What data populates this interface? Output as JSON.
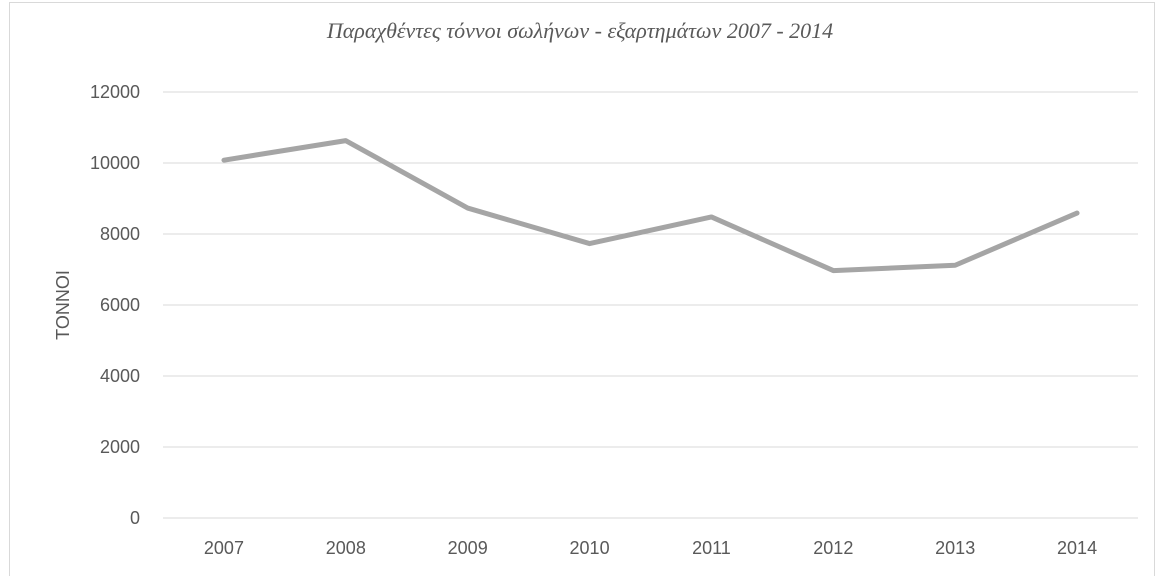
{
  "chart_data": {
    "type": "line",
    "title": "Παραχθέντες τόννοι σωλήνων - εξαρτημάτων 2007 - 2014",
    "xlabel": "",
    "ylabel": "ΤΟΝΝΟΙ",
    "categories": [
      "2007",
      "2008",
      "2009",
      "2010",
      "2011",
      "2012",
      "2013",
      "2014"
    ],
    "series": [
      {
        "values": [
          10080,
          10630,
          8730,
          7730,
          8480,
          6970,
          7120,
          8590
        ]
      }
    ],
    "ylim": [
      0,
      12000
    ],
    "yticks": [
      0,
      2000,
      4000,
      6000,
      8000,
      10000,
      12000
    ],
    "grid": true,
    "legend": "none",
    "colors": {
      "line": "#a5a5a5",
      "grid": "#d9d9d9",
      "text": "#595959"
    }
  }
}
